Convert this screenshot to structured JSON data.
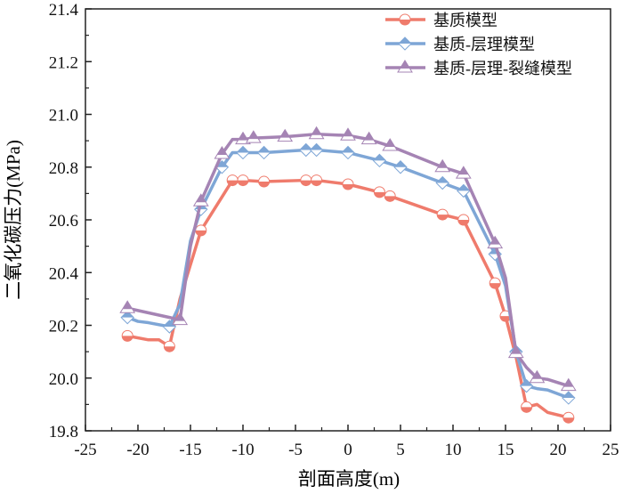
{
  "chart_data": {
    "type": "line",
    "title": "",
    "xlabel": "剖面高度(m)",
    "ylabel": "二氧化碳压力(MPa)",
    "xlim": [
      -25,
      25
    ],
    "ylim": [
      19.8,
      21.4
    ],
    "xticks": [
      -25,
      -20,
      -15,
      -10,
      -5,
      0,
      5,
      10,
      15,
      20,
      25
    ],
    "yticks": [
      19.8,
      20.0,
      20.2,
      20.4,
      20.6,
      20.8,
      21.0,
      21.2,
      21.4
    ],
    "grid": false,
    "legend_position": "top-right",
    "series": [
      {
        "name": "基质模型",
        "color": "#ef7b6c",
        "marker": "circle",
        "x": [
          -21,
          -19,
          -18,
          -17,
          -16,
          -14,
          -11,
          -10,
          -8,
          -4,
          -3,
          0,
          3,
          4,
          9,
          11,
          14,
          15,
          16,
          17,
          18,
          19,
          21
        ],
        "y": [
          20.16,
          20.145,
          20.145,
          20.12,
          20.3,
          20.56,
          20.75,
          20.75,
          20.745,
          20.75,
          20.75,
          20.735,
          20.705,
          20.69,
          20.62,
          20.6,
          20.36,
          20.235,
          20.08,
          19.89,
          19.9,
          19.87,
          19.85
        ],
        "markers": [
          -21,
          -17,
          -14,
          -11,
          -10,
          -8,
          -4,
          -3,
          0,
          3,
          4,
          9,
          11,
          14,
          15,
          17,
          21
        ]
      },
      {
        "name": "基质-层理模型",
        "color": "#7ea6d6",
        "marker": "diamond",
        "x": [
          -21,
          -20,
          -19,
          -17,
          -16,
          -15,
          -14,
          -12,
          -11,
          -10,
          -8,
          -4,
          -3,
          0,
          3,
          5,
          9,
          11,
          14,
          15,
          16,
          17,
          18,
          19,
          21
        ],
        "y": [
          20.23,
          20.215,
          20.21,
          20.195,
          20.28,
          20.52,
          20.64,
          20.8,
          20.855,
          20.855,
          20.855,
          20.865,
          20.865,
          20.855,
          20.825,
          20.8,
          20.74,
          20.71,
          20.47,
          20.35,
          20.1,
          19.97,
          19.96,
          19.955,
          19.925
        ],
        "markers": [
          -21,
          -17,
          -14,
          -12,
          -10,
          -8,
          -4,
          -3,
          0,
          3,
          5,
          9,
          11,
          14,
          16,
          17,
          21
        ]
      },
      {
        "name": "基质-层理-裂缝模型",
        "color": "#a584b4",
        "marker": "triangle",
        "x": [
          -21,
          -17,
          -16,
          -15,
          -14,
          -12,
          -11,
          -10,
          -9,
          -6,
          -3,
          0,
          2,
          4,
          9,
          11,
          14,
          15,
          16,
          17,
          18,
          19,
          21
        ],
        "y": [
          20.265,
          20.23,
          20.22,
          20.5,
          20.67,
          20.85,
          20.905,
          20.905,
          20.91,
          20.915,
          20.925,
          20.92,
          20.905,
          20.88,
          20.8,
          20.775,
          20.51,
          20.38,
          20.095,
          20.04,
          20.0,
          19.995,
          19.97
        ],
        "markers": [
          -21,
          -16,
          -14,
          -12,
          -10,
          -9,
          -6,
          -3,
          0,
          2,
          4,
          9,
          11,
          14,
          16,
          18,
          21
        ]
      }
    ]
  }
}
